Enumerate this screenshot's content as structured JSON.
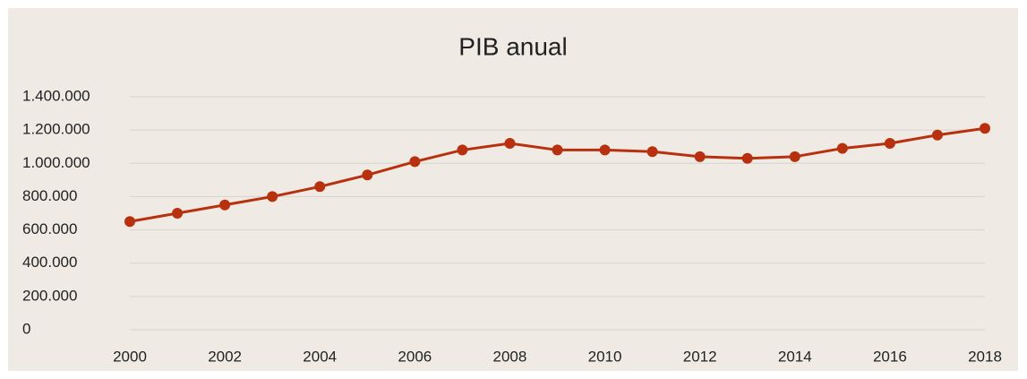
{
  "chart_data": {
    "type": "line",
    "title": "PIB anual",
    "x": [
      2000,
      2001,
      2002,
      2003,
      2004,
      2005,
      2006,
      2007,
      2008,
      2009,
      2010,
      2011,
      2012,
      2013,
      2014,
      2015,
      2016,
      2017,
      2018
    ],
    "series": [
      {
        "name": "PIB",
        "color": "#b8310f",
        "values": [
          650000,
          700000,
          750000,
          800000,
          860000,
          930000,
          1010000,
          1080000,
          1120000,
          1080000,
          1080000,
          1070000,
          1040000,
          1030000,
          1040000,
          1090000,
          1120000,
          1170000,
          1210000
        ]
      }
    ],
    "xlim": [
      2000,
      2018
    ],
    "xticks": [
      2000,
      2002,
      2004,
      2006,
      2008,
      2010,
      2012,
      2014,
      2016,
      2018
    ],
    "ylim": [
      0,
      1400000
    ],
    "yticks": [
      0,
      {
        "value": 200000,
        "label": "200.000"
      },
      {
        "value": 400000,
        "label": "400.000"
      },
      {
        "value": 600000,
        "label": "600.000"
      },
      {
        "value": 800000,
        "label": "800.000"
      },
      {
        "value": 1000000,
        "label": "1.000.000"
      },
      {
        "value": 1200000,
        "label": "1.200.000"
      },
      {
        "value": 1400000,
        "label": "1.400.000"
      }
    ],
    "grid": true,
    "legend": false
  }
}
